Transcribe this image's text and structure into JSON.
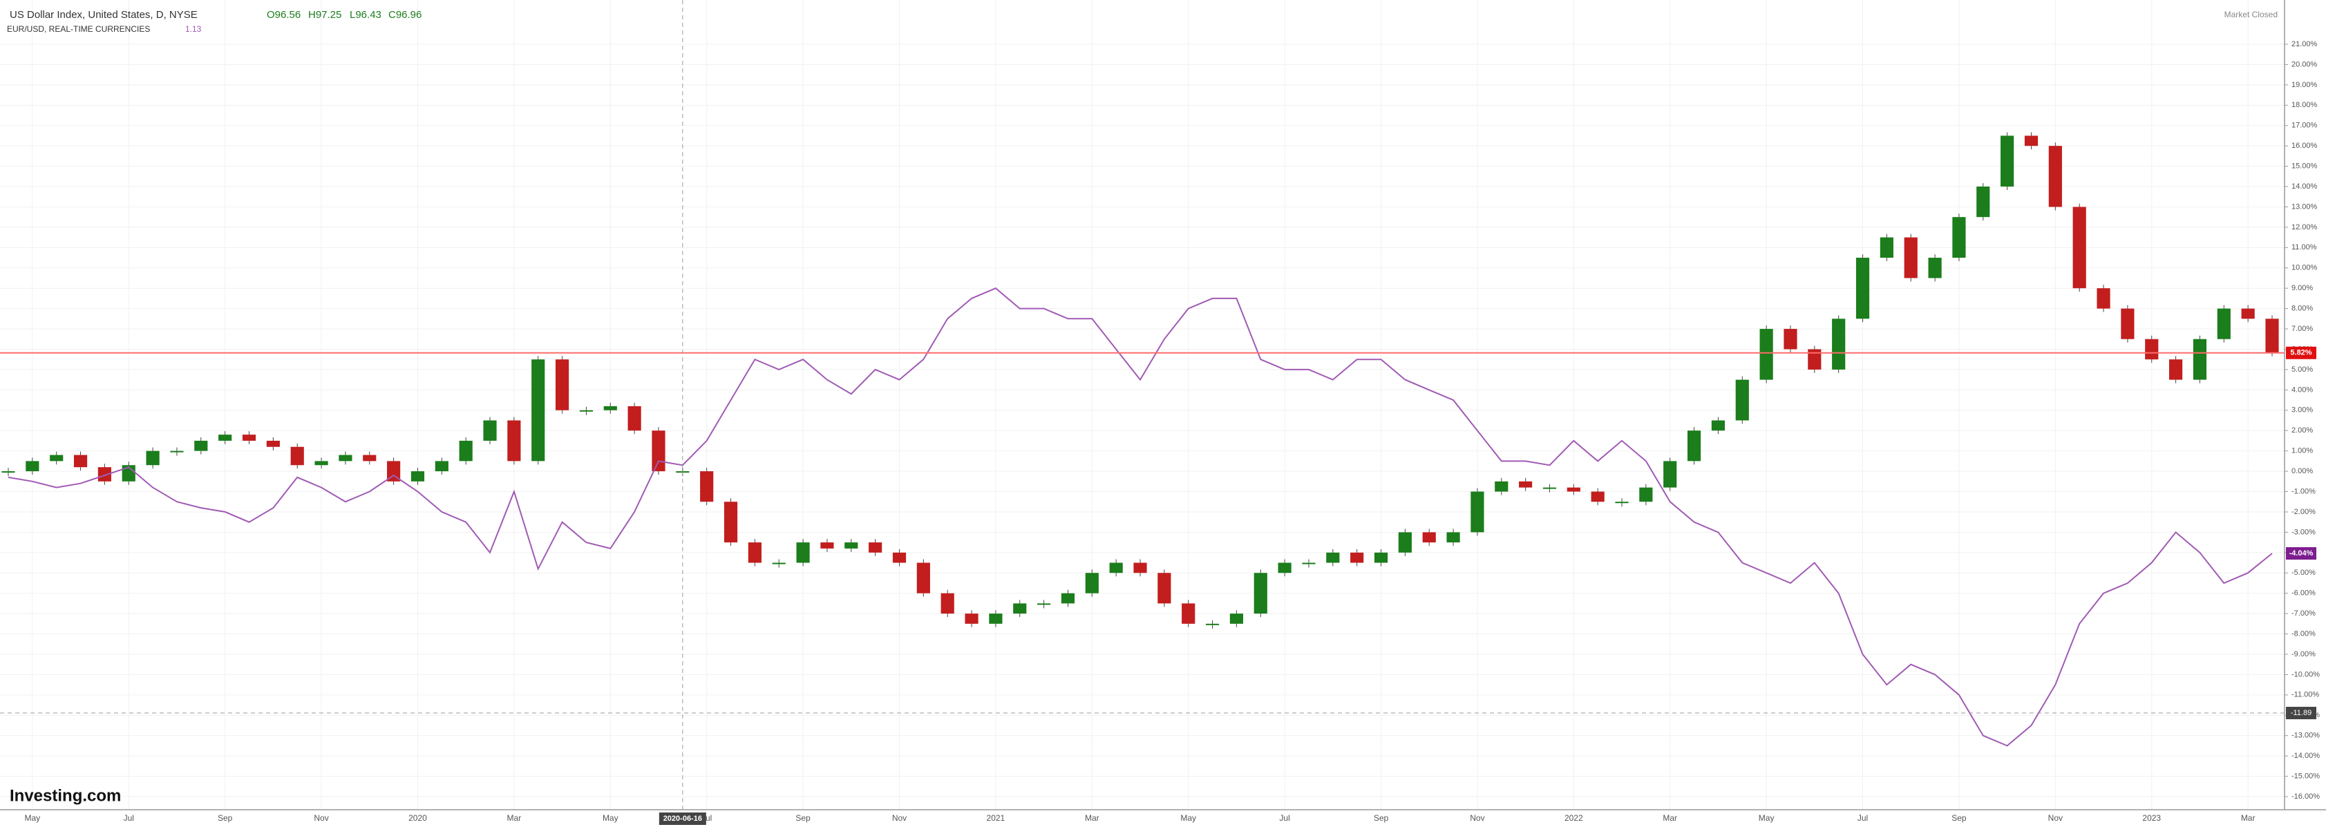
{
  "chart_data": {
    "type": "candlestick-line",
    "title": "US Dollar Index, United States, D, NYSE",
    "ohlc": [
      "O96.56",
      "H97.25",
      "L96.43",
      "C96.96"
    ],
    "compare_title": "EUR/USD, REAL-TIME CURRENCIES",
    "compare_value": "1.13",
    "status": "Market Closed",
    "logo": "Investing.com",
    "crosshair": {
      "x_label": "2020-06-16",
      "y": -11.89,
      "y_label": "-11.89"
    },
    "x_tick_labels": [
      "May",
      "Jul",
      "Sep",
      "Nov",
      "2020",
      "Mar",
      "May",
      "Jul",
      "Sep",
      "Nov",
      "2021",
      "Mar",
      "May",
      "Jul",
      "Sep",
      "Nov",
      "2022",
      "Mar",
      "May",
      "Jul",
      "Sep",
      "Nov",
      "2023",
      "Mar"
    ],
    "ylim": [
      -16.5,
      21.5
    ],
    "yticks": [
      {
        "value": 21,
        "label": "21.00%"
      },
      {
        "value": 20,
        "label": "20.00%"
      },
      {
        "value": 19,
        "label": "19.00%"
      },
      {
        "value": 18,
        "label": "18.00%"
      },
      {
        "value": 17,
        "label": "17.00%"
      },
      {
        "value": 16,
        "label": "16.00%"
      },
      {
        "value": 15,
        "label": "15.00%"
      },
      {
        "value": 14,
        "label": "14.00%"
      },
      {
        "value": 13,
        "label": "13.00%"
      },
      {
        "value": 12,
        "label": "12.00%"
      },
      {
        "value": 11,
        "label": "11.00%"
      },
      {
        "value": 10,
        "label": "10.00%"
      },
      {
        "value": 9,
        "label": "9.00%"
      },
      {
        "value": 8,
        "label": "8.00%"
      },
      {
        "value": 7,
        "label": "7.00%"
      },
      {
        "value": 6,
        "label": "6.00%"
      },
      {
        "value": 5,
        "label": "5.00%"
      },
      {
        "value": 4,
        "label": "4.00%"
      },
      {
        "value": 3,
        "label": "3.00%"
      },
      {
        "value": 2,
        "label": "2.00%"
      },
      {
        "value": 1,
        "label": "1.00%"
      },
      {
        "value": 0,
        "label": "0.00%"
      },
      {
        "value": -1,
        "label": "-1.00%"
      },
      {
        "value": -2,
        "label": "-2.00%"
      },
      {
        "value": -3,
        "label": "-3.00%"
      },
      {
        "value": -4,
        "label": "-4.00%"
      },
      {
        "value": -5,
        "label": "-5.00%"
      },
      {
        "value": -6,
        "label": "-6.00%"
      },
      {
        "value": -7,
        "label": "-7.00%"
      },
      {
        "value": -8,
        "label": "-8.00%"
      },
      {
        "value": -9,
        "label": "-9.00%"
      },
      {
        "value": -10,
        "label": "-10.00%"
      },
      {
        "value": -11,
        "label": "-11.00%"
      },
      {
        "value": -12,
        "label": "-12.00%"
      },
      {
        "value": -13,
        "label": "-13.00%"
      },
      {
        "value": -14,
        "label": "-14.00%"
      },
      {
        "value": -15,
        "label": "-15.00%"
      },
      {
        "value": -16,
        "label": "-16.00%"
      }
    ],
    "grid": true,
    "series": [
      {
        "name": "US Dollar Index",
        "kind": "candle",
        "color": "#1b7d1b",
        "down_color": "#c21e1e",
        "line_color": "#ff6b6b",
        "last_label": "5.82%",
        "values": [
          0.0,
          0.5,
          0.8,
          0.2,
          -0.5,
          0.3,
          1.0,
          1.0,
          1.5,
          1.8,
          1.5,
          1.2,
          0.3,
          0.5,
          0.8,
          0.5,
          -0.5,
          0,
          0.5,
          1.5,
          2.5,
          0.5,
          5.5,
          3.0,
          3.0,
          3.2,
          2.0,
          0.0,
          0.0,
          -1.5,
          -3.5,
          -4.5,
          -4.5,
          -3.5,
          -3.8,
          -3.5,
          -4.0,
          -4.5,
          -6.0,
          -7.0,
          -7.5,
          -7.0,
          -6.5,
          -6.5,
          -6.0,
          -5.0,
          -4.5,
          -5.0,
          -6.5,
          -7.5,
          -7.5,
          -7.0,
          -5.0,
          -4.5,
          -4.5,
          -4.0,
          -4.5,
          -4.0,
          -3.0,
          -3.5,
          -3.0,
          -1.0,
          -0.5,
          -0.8,
          -0.8,
          -1.0,
          -1.5,
          -1.5,
          -0.8,
          0.5,
          2.0,
          2.5,
          4.5,
          7.0,
          6.0,
          5.0,
          7.5,
          10.5,
          11.5,
          9.5,
          10.5,
          12.5,
          14.0,
          16.5,
          16.0,
          13.0,
          9.0,
          8.0,
          6.5,
          5.5,
          4.5,
          6.5,
          8.0,
          7.5,
          5.82
        ]
      },
      {
        "name": "EUR/USD",
        "kind": "line",
        "color": "#a05ab4",
        "last_label": "-4.04%",
        "values": [
          -0.3,
          -0.5,
          -0.8,
          -0.6,
          -0.2,
          0.2,
          -0.8,
          -1.5,
          -1.8,
          -2.0,
          -2.5,
          -1.8,
          -0.3,
          -0.8,
          -1.5,
          -1.0,
          -0.2,
          -1.0,
          -2.0,
          -2.5,
          -4.0,
          -1.0,
          -4.8,
          -2.5,
          -3.5,
          -3.8,
          -2.0,
          0.5,
          0.3,
          1.5,
          3.5,
          5.5,
          5.0,
          5.5,
          4.5,
          3.8,
          5.0,
          4.5,
          5.5,
          7.5,
          8.5,
          9.0,
          8.0,
          8.0,
          7.5,
          7.5,
          6.0,
          4.5,
          6.5,
          8.0,
          8.5,
          8.5,
          5.5,
          5.0,
          5.0,
          4.5,
          5.5,
          5.5,
          4.5,
          4.0,
          3.5,
          2.0,
          0.5,
          0.5,
          0.3,
          1.5,
          0.5,
          1.5,
          0.5,
          -1.5,
          -2.5,
          -3.0,
          -4.5,
          -5.0,
          -5.5,
          -4.5,
          -6.0,
          -9.0,
          -10.5,
          -9.5,
          -10.0,
          -11.0,
          -13.0,
          -13.5,
          -12.5,
          -10.5,
          -7.5,
          -6.0,
          -5.5,
          -4.5,
          -3.0,
          -4.0,
          -5.5,
          -5.0,
          -4.04
        ]
      }
    ]
  }
}
